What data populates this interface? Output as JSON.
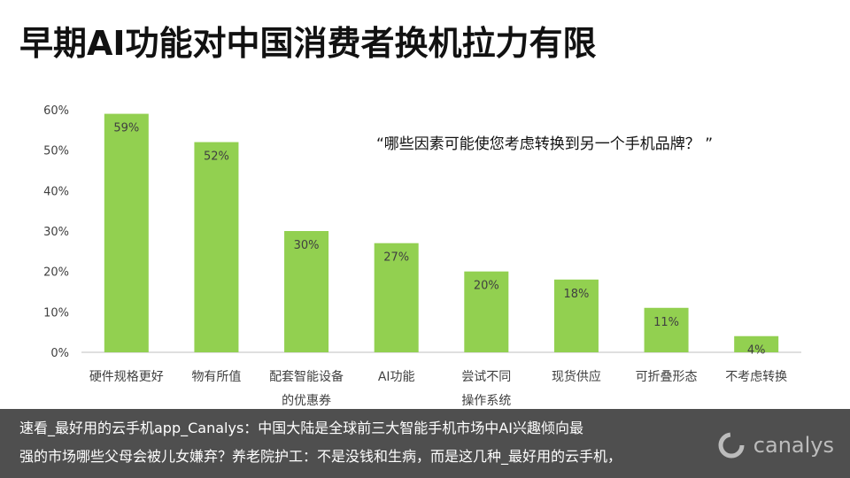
{
  "title": "早期AI功能对中国消费者换机拉力有限",
  "question": "“哪些因素可能使您考虑转换到另一个手机品牌？ ”",
  "colors": {
    "bar": "#92d050",
    "axis": "#bfbfbf",
    "text": "#404040",
    "overlay": "#1e1e1e"
  },
  "chart_data": {
    "type": "bar",
    "categories": [
      "硬件规格更好",
      "物有所值",
      "配套智能设备的优惠券",
      "AI功能",
      "尝试不同操作系统",
      "现货供应",
      "可折叠形态",
      "不考虑转换"
    ],
    "category_lines": [
      [
        "硬件规格更好"
      ],
      [
        "物有所值"
      ],
      [
        "配套智能设备",
        "的优惠券"
      ],
      [
        "AI功能"
      ],
      [
        "尝试不同",
        "操作系统"
      ],
      [
        "现货供应"
      ],
      [
        "可折叠形态"
      ],
      [
        "不考虑转换"
      ]
    ],
    "values": [
      59,
      52,
      30,
      27,
      20,
      18,
      11,
      4
    ],
    "data_labels": [
      "59%",
      "52%",
      "30%",
      "27%",
      "20%",
      "18%",
      "11%",
      "4%"
    ],
    "yticks": [
      0,
      10,
      20,
      30,
      40,
      50,
      60
    ],
    "ytick_labels": [
      "0%",
      "10%",
      "20%",
      "30%",
      "40%",
      "50%",
      "60%"
    ],
    "ylim": [
      0,
      60
    ],
    "grid": false
  },
  "overlay": {
    "line1": "速看_最好用的云手机app_Canalys：中国大陆是全球前三大智能手机市场中AI兴趣倾向最",
    "line2": "强的市场哪些父母会被儿女嫌弃？养老院护工：不是没钱和生病，而是这几种_最好用的云手机，"
  },
  "logo": {
    "text": "canalys",
    "icon": "canalys-logo-icon"
  }
}
